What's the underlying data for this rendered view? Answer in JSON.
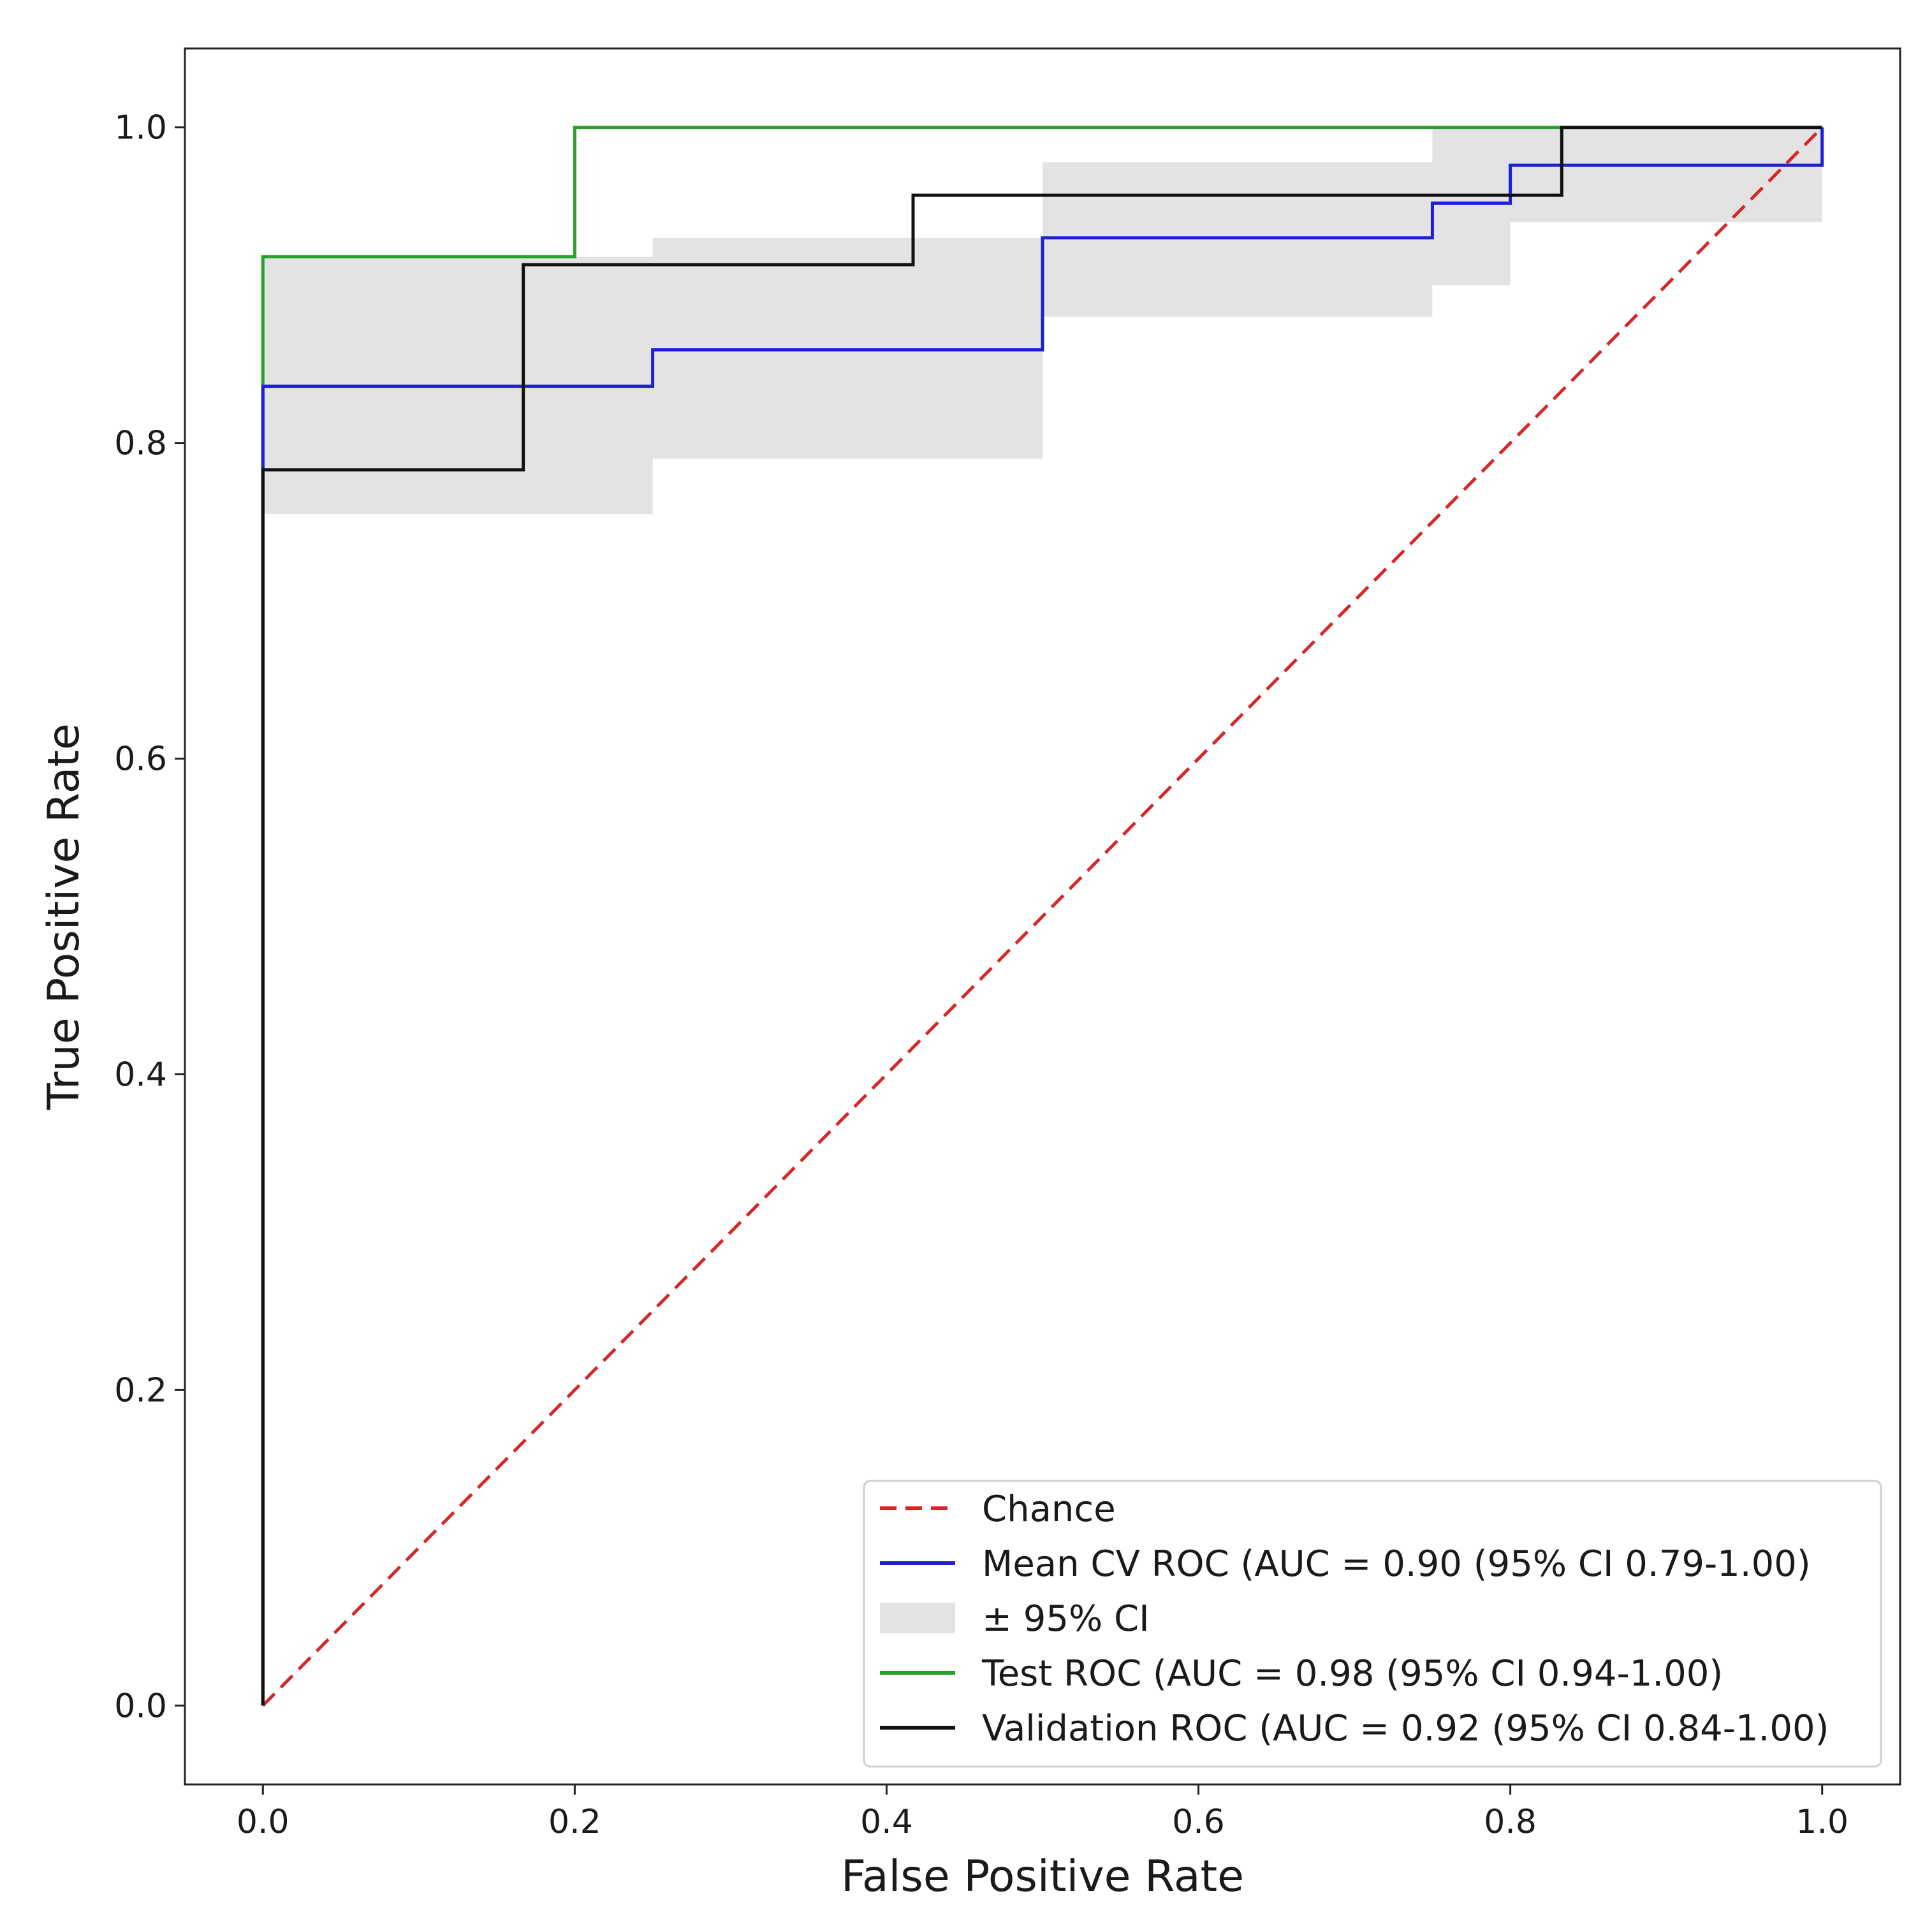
{
  "chart_data": {
    "type": "line",
    "title": "",
    "xlabel": "False Positive Rate",
    "ylabel": "True Positive Rate",
    "xlim": [
      -0.05,
      1.05
    ],
    "ylim": [
      -0.05,
      1.05
    ],
    "xticks": [
      0.0,
      0.2,
      0.4,
      0.6,
      0.8,
      1.0
    ],
    "yticks": [
      0.0,
      0.2,
      0.4,
      0.6,
      0.8,
      1.0
    ],
    "x_tick_labels": [
      "0.0",
      "0.2",
      "0.4",
      "0.6",
      "0.8",
      "1.0"
    ],
    "y_tick_labels": [
      "0.0",
      "0.2",
      "0.4",
      "0.6",
      "0.8",
      "1.0"
    ],
    "grid": false,
    "legend_position": "lower-right",
    "series": [
      {
        "name": "Chance",
        "style": "dashed",
        "color": "#d62728",
        "x": [
          0.0,
          1.0
        ],
        "y": [
          0.0,
          1.0
        ]
      },
      {
        "name": "Mean CV ROC (AUC = 0.90 (95% CI 0.79-1.00)",
        "style": "solid",
        "color": "#1f1fd6",
        "x": [
          0.0,
          0.0,
          0.25,
          0.25,
          0.5,
          0.5,
          0.75,
          0.75,
          0.8,
          0.8,
          1.0,
          1.0
        ],
        "y": [
          0.0,
          0.836,
          0.836,
          0.859,
          0.859,
          0.93,
          0.93,
          0.952,
          0.952,
          0.976,
          0.976,
          1.0
        ]
      },
      {
        "name": "± 95% CI",
        "style": "band",
        "color": "#e3e3e3",
        "x": [
          0.0,
          0.25,
          0.25,
          0.5,
          0.5,
          0.75,
          0.75,
          0.8,
          0.8,
          1.0
        ],
        "lower": [
          0.755,
          0.755,
          0.79,
          0.79,
          0.88,
          0.88,
          0.9,
          0.9,
          0.94,
          0.94
        ],
        "upper": [
          0.918,
          0.918,
          0.93,
          0.93,
          0.978,
          0.978,
          1.0,
          1.0,
          1.0,
          1.0
        ]
      },
      {
        "name": "Test ROC (AUC = 0.98 (95% CI 0.94-1.00)",
        "style": "solid",
        "color": "#2ca02c",
        "x": [
          0.0,
          0.0,
          0.2,
          0.2,
          1.0
        ],
        "y": [
          0.0,
          0.918,
          0.918,
          1.0,
          1.0
        ]
      },
      {
        "name": "Validation ROC (AUC = 0.92 (95% CI 0.84-1.00)",
        "style": "solid",
        "color": "#111111",
        "x": [
          0.0,
          0.0,
          0.167,
          0.167,
          0.417,
          0.417,
          0.833,
          0.833,
          1.0
        ],
        "y": [
          0.0,
          0.783,
          0.783,
          0.913,
          0.913,
          0.957,
          0.957,
          1.0,
          1.0
        ]
      }
    ]
  },
  "legend": {
    "items": [
      {
        "label": "Chance",
        "kind": "dashed",
        "color": "#d62728"
      },
      {
        "label": "Mean CV ROC (AUC = 0.90 (95% CI 0.79-1.00)",
        "kind": "line",
        "color": "#1f1fd6"
      },
      {
        "label": "± 95% CI",
        "kind": "patch",
        "color": "#e3e3e3"
      },
      {
        "label": "Test ROC (AUC = 0.98 (95% CI 0.94-1.00)",
        "kind": "line",
        "color": "#2ca02c"
      },
      {
        "label": "Validation ROC (AUC = 0.92 (95% CI 0.84-1.00)",
        "kind": "line",
        "color": "#111111"
      }
    ]
  }
}
